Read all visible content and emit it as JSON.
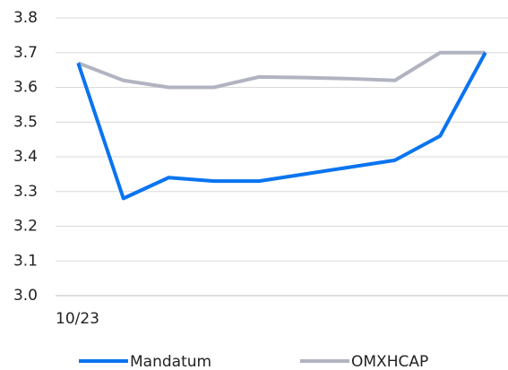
{
  "chart_data": {
    "type": "line",
    "categories": [
      "10/23",
      null,
      null,
      null,
      null,
      null,
      null,
      null,
      null,
      null
    ],
    "series": [
      {
        "name": "Mandatum",
        "color": "#0a74f0",
        "values": [
          3.67,
          3.28,
          3.34,
          3.33,
          3.33,
          3.35,
          3.37,
          3.39,
          3.46,
          3.7
        ]
      },
      {
        "name": "OMXHCAP",
        "color": "#b1b4c0",
        "values": [
          3.67,
          3.62,
          3.6,
          3.6,
          3.63,
          3.628,
          3.625,
          3.62,
          3.7,
          3.7
        ]
      }
    ],
    "ylim": [
      3.0,
      3.8
    ],
    "yticks": [
      {
        "value": 3.0,
        "label": "3.0"
      },
      3.1,
      3.2,
      3.3,
      3.4,
      3.5,
      3.6,
      3.7,
      3.8
    ],
    "grid": true,
    "legend": "bottom"
  }
}
